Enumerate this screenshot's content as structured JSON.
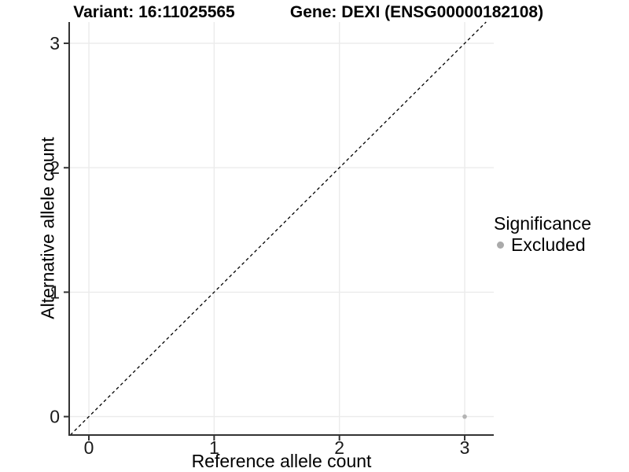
{
  "chart_data": {
    "type": "scatter",
    "title_left": "Variant: 16:11025565",
    "title_right": "Gene: DEXI (ENSG00000182108)",
    "xlabel": "Reference allele count",
    "ylabel": "Alternative allele count",
    "x_ticks": [
      0,
      1,
      2,
      3
    ],
    "y_ticks": [
      0,
      1,
      2,
      3
    ],
    "xlim": [
      -0.157,
      3.232
    ],
    "ylim": [
      -0.148,
      3.171
    ],
    "grid": true,
    "identity_line": {
      "style": "dashed",
      "equation": "y = x"
    },
    "points": [
      {
        "x": 3,
        "y": 0,
        "significance": "Excluded"
      }
    ],
    "legend": {
      "title": "Significance",
      "position": "right",
      "items": [
        {
          "label": "Excluded",
          "color": "#aaaaaa"
        }
      ]
    },
    "colors": {
      "background": "#ffffff",
      "gridline": "#ebebeb",
      "axis_line": "#333333",
      "tick_text": "#1a1a1a",
      "point": "#b4b4b4",
      "dashed_line": "#000000"
    }
  }
}
